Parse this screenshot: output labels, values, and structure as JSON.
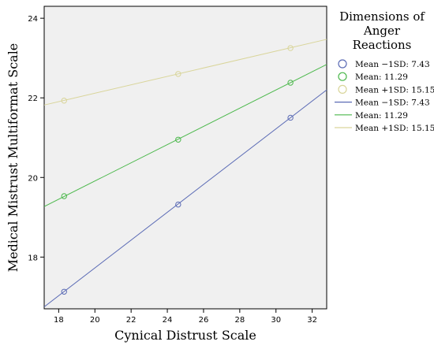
{
  "chart_data": {
    "type": "line",
    "xlabel": "Cynical Distrust Scale",
    "ylabel": "Medical Mistrust Multiformat Scale",
    "xlim": [
      17.2,
      32.8
    ],
    "ylim": [
      16.7,
      24.3
    ],
    "xticks": [
      18,
      20,
      22,
      24,
      26,
      28,
      30,
      32
    ],
    "yticks": [
      18,
      20,
      22,
      24
    ],
    "grid": false,
    "legend": {
      "title_lines": [
        "Dimensions of",
        "Anger",
        "Reactions"
      ],
      "placement": "right",
      "entries": [
        {
          "label": "Mean −1SD: 7.43",
          "kind": "marker",
          "color": "#5b6bb5"
        },
        {
          "label": "Mean: 11.29",
          "kind": "marker",
          "color": "#4cb84c"
        },
        {
          "label": "Mean +1SD: 15.15",
          "kind": "marker",
          "color": "#d9d59a"
        },
        {
          "label": "Mean −1SD: 7.43",
          "kind": "line",
          "color": "#5b6bb5"
        },
        {
          "label": "Mean: 11.29",
          "kind": "line",
          "color": "#4cb84c"
        },
        {
          "label": "Mean +1SD: 15.15",
          "kind": "line",
          "color": "#d9d59a"
        }
      ]
    },
    "series": [
      {
        "color": "#5b6bb5",
        "points": {
          "x": [
            18.3,
            24.6,
            30.8
          ],
          "y": [
            17.13,
            19.32,
            21.5
          ]
        },
        "fit": {
          "x": [
            17.2,
            32.8
          ],
          "y": [
            16.75,
            22.2
          ]
        }
      },
      {
        "color": "#4cb84c",
        "points": {
          "x": [
            18.3,
            24.6,
            30.8
          ],
          "y": [
            19.53,
            20.95,
            22.38
          ]
        },
        "fit": {
          "x": [
            17.2,
            32.8
          ],
          "y": [
            19.27,
            22.84
          ]
        }
      },
      {
        "color": "#d9d59a",
        "points": {
          "x": [
            18.3,
            24.6,
            30.8
          ],
          "y": [
            21.93,
            22.6,
            23.25
          ]
        },
        "fit": {
          "x": [
            17.2,
            32.8
          ],
          "y": [
            21.82,
            23.47
          ]
        }
      }
    ]
  }
}
